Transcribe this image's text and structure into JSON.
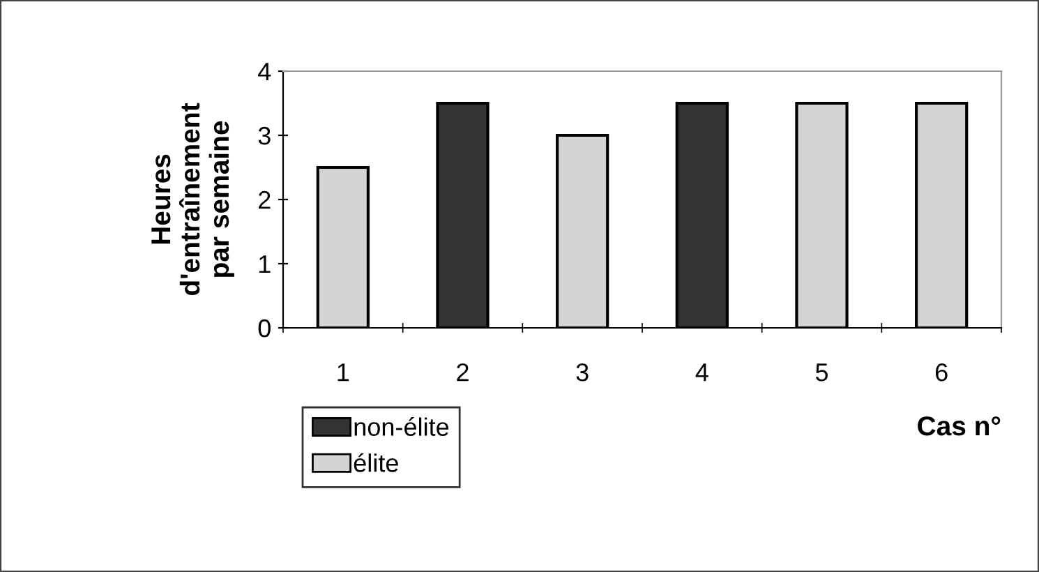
{
  "chart_data": {
    "type": "bar",
    "ylabel": "Heures\nd'entraînement\npar semaine",
    "xlabel": "Cas n°",
    "categories": [
      "1",
      "2",
      "3",
      "4",
      "5",
      "6"
    ],
    "series": [
      {
        "name": "non-élite",
        "color": "#333333",
        "values": [
          null,
          3.5,
          null,
          3.5,
          null,
          null
        ]
      },
      {
        "name": "élite",
        "color": "#d4d4d4",
        "values": [
          2.5,
          null,
          3,
          null,
          3.5,
          3.5
        ]
      }
    ],
    "ylim": [
      0,
      4
    ],
    "yticks": [
      0,
      1,
      2,
      3,
      4
    ],
    "grid": false,
    "legend": "bottom left"
  }
}
